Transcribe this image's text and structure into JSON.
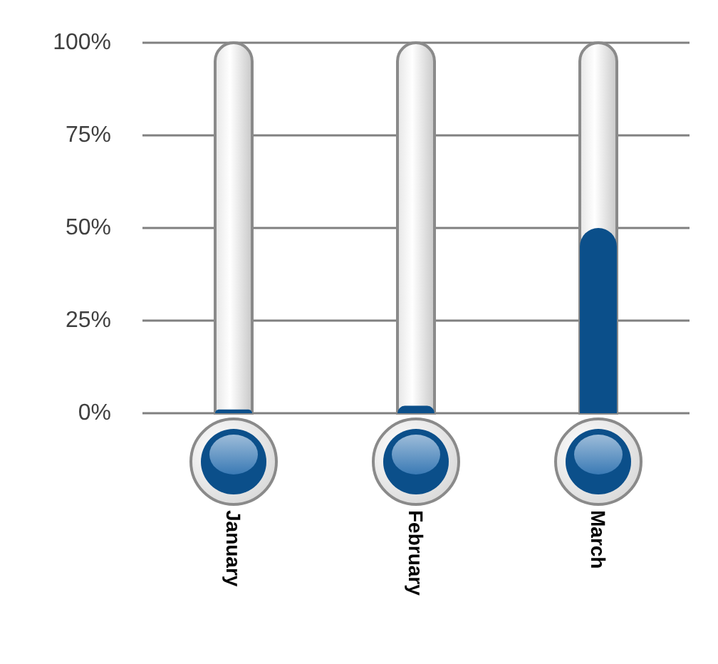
{
  "chart_data": {
    "type": "bar",
    "categories": [
      "January",
      "February",
      "March"
    ],
    "values": [
      1,
      2,
      50
    ],
    "color": "#0b4f8a",
    "ylim": [
      0,
      100
    ],
    "yticks": [
      {
        "value": 0,
        "label": "0%"
      },
      {
        "value": 25,
        "label": "25%"
      },
      {
        "value": 50,
        "label": "50%"
      },
      {
        "value": 75,
        "label": "75%"
      },
      {
        "value": 100,
        "label": "100%"
      }
    ],
    "grid": "y"
  }
}
